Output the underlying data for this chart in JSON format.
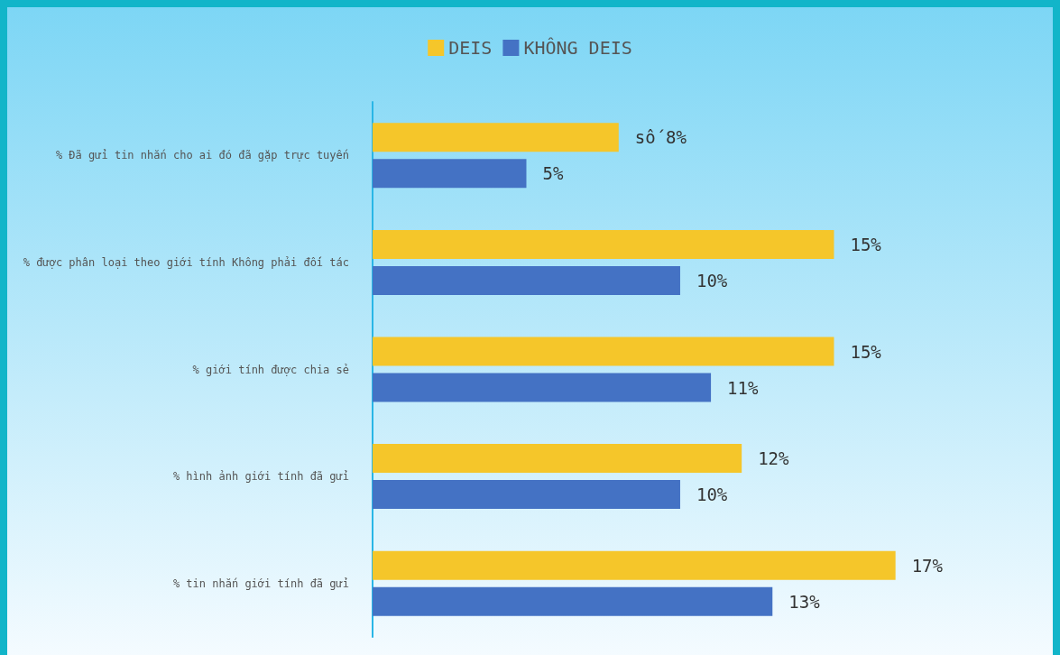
{
  "chart_data": {
    "type": "bar",
    "orientation": "horizontal",
    "categories": [
      "% Đã gửi tin nhắn cho ai đó đã gặp trực tuyến",
      "% được phân loại theo giới tính Không phải đối tác",
      "% giới tính được chia sẻ",
      "% hình ảnh giới tính đã gửi",
      "% tin nhắn giới tính đã gửi"
    ],
    "series": [
      {
        "name": "DEIS",
        "color": "#f5c62a",
        "values": [
          8,
          15,
          15,
          12,
          17
        ],
        "value_labels": [
          "số 8%",
          "15%",
          "15%",
          "12%",
          "17%"
        ]
      },
      {
        "name": "KHÔNG DEIS",
        "color": "#4472c4",
        "values": [
          5,
          10,
          11,
          10,
          13
        ],
        "value_labels": [
          "5%",
          "10%",
          "11%",
          "10%",
          "13%"
        ]
      }
    ],
    "legend": "top",
    "grid": false
  }
}
